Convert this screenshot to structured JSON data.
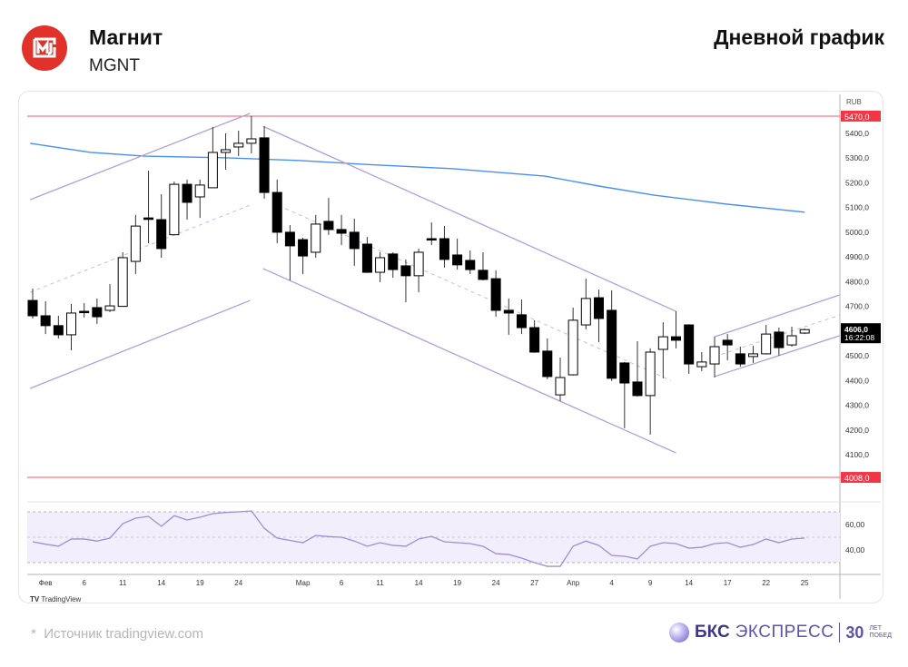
{
  "header": {
    "company": "Магнит",
    "ticker": "MGNT",
    "chart_kind": "Дневной график"
  },
  "footer": {
    "source": "Источник tradingview.com",
    "source_star": "*",
    "brand_bold": "БКС",
    "brand_light": "ЭКСПРЕСС",
    "brand_30": "30",
    "brand_small_1": "ЛЕТ",
    "brand_small_2": "ПОБЕД",
    "tv_logo": "TradingView"
  },
  "colors": {
    "up_fill": "#ffffff",
    "down_fill": "#000000",
    "channel": "#b39ddb",
    "ma": "#4a8ff0",
    "level": "#f23645",
    "rsi": "#9c8fd6",
    "rsi_band": "#f3eefb"
  },
  "chart_data": {
    "type": "candlestick",
    "currency": "RUB",
    "y_ticks": [
      "5400,0",
      "5300,0",
      "5200,0",
      "5100,0",
      "5000,0",
      "4900,0",
      "4800,0",
      "4700,0",
      "4500,0",
      "4400,0",
      "4300,0",
      "4200,0",
      "4100,0"
    ],
    "y_tick_values": [
      5400,
      5300,
      5200,
      5100,
      5000,
      4900,
      4800,
      4700,
      4500,
      4400,
      4300,
      4200,
      4100
    ],
    "levels": [
      {
        "price": 5470,
        "label": "5470,0"
      },
      {
        "price": 4008,
        "label": "4008,0"
      }
    ],
    "last": {
      "price": 4606,
      "label": "4606,0",
      "time": "16:22:08"
    },
    "x_labels": [
      {
        "i": 1,
        "t": "Фев"
      },
      {
        "i": 4,
        "t": "6"
      },
      {
        "i": 7,
        "t": "11"
      },
      {
        "i": 10,
        "t": "14"
      },
      {
        "i": 13,
        "t": "19"
      },
      {
        "i": 16,
        "t": "24"
      },
      {
        "i": 21,
        "t": "Мар"
      },
      {
        "i": 24,
        "t": "6"
      },
      {
        "i": 27,
        "t": "11"
      },
      {
        "i": 30,
        "t": "14"
      },
      {
        "i": 33,
        "t": "19"
      },
      {
        "i": 36,
        "t": "24"
      },
      {
        "i": 39,
        "t": "27"
      },
      {
        "i": 42,
        "t": "Апр"
      },
      {
        "i": 45,
        "t": "4"
      },
      {
        "i": 48,
        "t": "9"
      },
      {
        "i": 51,
        "t": "14"
      },
      {
        "i": 54,
        "t": "17"
      },
      {
        "i": 57,
        "t": "22"
      },
      {
        "i": 60,
        "t": "25"
      }
    ],
    "ohlc": [
      [
        4724,
        4772,
        4651,
        4662
      ],
      [
        4662,
        4721,
        4588,
        4622
      ],
      [
        4622,
        4662,
        4570,
        4585
      ],
      [
        4585,
        4710,
        4522,
        4673
      ],
      [
        4680,
        4713,
        4655,
        4675
      ],
      [
        4695,
        4732,
        4629,
        4658
      ],
      [
        4684,
        4790,
        4677,
        4702
      ],
      [
        4700,
        4919,
        4700,
        4897
      ],
      [
        4882,
        5070,
        4831,
        5025
      ],
      [
        5058,
        5249,
        4956,
        5052
      ],
      [
        5051,
        5154,
        4897,
        4934
      ],
      [
        4990,
        5205,
        4990,
        5194
      ],
      [
        5194,
        5213,
        5051,
        5121
      ],
      [
        5143,
        5213,
        5058,
        5191
      ],
      [
        5180,
        5426,
        5180,
        5323
      ],
      [
        5323,
        5400,
        5253,
        5334
      ],
      [
        5345,
        5411,
        5308,
        5360
      ],
      [
        5360,
        5470,
        5319,
        5378
      ],
      [
        5382,
        5429,
        5136,
        5161
      ],
      [
        5161,
        5213,
        4956,
        5000
      ],
      [
        5000,
        5029,
        4805,
        4945
      ],
      [
        4970,
        4978,
        4831,
        4904
      ],
      [
        4919,
        5070,
        4897,
        5033
      ],
      [
        5044,
        5139,
        4989,
        5011
      ],
      [
        5011,
        5070,
        4948,
        4996
      ],
      [
        5000,
        5055,
        4864,
        4934
      ],
      [
        4952,
        4981,
        4835,
        4838
      ],
      [
        4838,
        4919,
        4798,
        4897
      ],
      [
        4912,
        4919,
        4816,
        4849
      ],
      [
        4864,
        4890,
        4717,
        4824
      ],
      [
        4824,
        4934,
        4757,
        4919
      ],
      [
        4974,
        5040,
        4948,
        4970
      ],
      [
        4974,
        5025,
        4857,
        4890
      ],
      [
        4908,
        4974,
        4849,
        4868
      ],
      [
        4886,
        4926,
        4831,
        4849
      ],
      [
        4846,
        4919,
        4805,
        4809
      ],
      [
        4812,
        4846,
        4658,
        4684
      ],
      [
        4684,
        4732,
        4585,
        4673
      ],
      [
        4666,
        4728,
        4588,
        4614
      ],
      [
        4614,
        4644,
        4512,
        4515
      ],
      [
        4519,
        4570,
        4405,
        4416
      ],
      [
        4342,
        4493,
        4317,
        4412
      ],
      [
        4423,
        4695,
        4420,
        4644
      ],
      [
        4625,
        4812,
        4607,
        4732
      ],
      [
        4735,
        4768,
        4555,
        4651
      ],
      [
        4684,
        4765,
        4398,
        4409
      ],
      [
        4471,
        4475,
        4207,
        4390
      ],
      [
        4394,
        4559,
        4335,
        4339
      ],
      [
        4339,
        4530,
        4181,
        4515
      ],
      [
        4526,
        4636,
        4409,
        4577
      ],
      [
        4577,
        4680,
        4530,
        4563
      ],
      [
        4625,
        4628,
        4427,
        4467
      ],
      [
        4456,
        4515,
        4438,
        4475
      ],
      [
        4467,
        4577,
        4412,
        4537
      ],
      [
        4563,
        4588,
        4482,
        4544
      ],
      [
        4508,
        4537,
        4456,
        4467
      ],
      [
        4497,
        4541,
        4471,
        4508
      ],
      [
        4508,
        4625,
        4505,
        4588
      ],
      [
        4596,
        4614,
        4500,
        4533
      ],
      [
        4544,
        4618,
        4537,
        4581
      ],
      [
        4592,
        4610,
        4588,
        4606
      ]
    ],
    "ma": [
      [
        -0.2,
        5360
      ],
      [
        4.5,
        5323
      ],
      [
        8.75,
        5308
      ],
      [
        15.1,
        5301
      ],
      [
        20.8,
        5290
      ],
      [
        25.7,
        5275
      ],
      [
        32.7,
        5257
      ],
      [
        39.8,
        5227
      ],
      [
        44,
        5187
      ],
      [
        48.3,
        5150
      ],
      [
        53.9,
        5114
      ],
      [
        60,
        5081
      ]
    ],
    "channels": [
      {
        "upper": [
          [
            -0.2,
            5132
          ],
          [
            16.9,
            5481
          ]
        ],
        "lower": [
          [
            -0.2,
            4368
          ],
          [
            16.9,
            4724
          ]
        ],
        "mid": [
          [
            -0.2,
            4757
          ],
          [
            16.9,
            5110
          ]
        ]
      },
      {
        "upper": [
          [
            17.9,
            5429
          ],
          [
            50,
            4680
          ]
        ],
        "lower": [
          [
            17.9,
            4853
          ],
          [
            50,
            4107
          ]
        ],
        "mid": [
          [
            18.6,
            5120
          ],
          [
            49.6,
            4400
          ]
        ]
      },
      {
        "upper": [
          [
            53,
            4577
          ],
          [
            62.7,
            4746
          ]
        ],
        "lower": [
          [
            53,
            4416
          ],
          [
            62.7,
            4581
          ]
        ],
        "mid": [
          [
            53,
            4497
          ],
          [
            62.7,
            4664
          ]
        ]
      }
    ],
    "rsi": {
      "ticks": [
        "60,00",
        "40,00"
      ],
      "tick_values": [
        60,
        40
      ],
      "bands": [
        70,
        50,
        30
      ],
      "values": [
        46.4,
        44.5,
        42.9,
        48.6,
        48.6,
        47,
        49.3,
        60.7,
        65,
        66.4,
        58.6,
        67,
        63.6,
        65.7,
        68.6,
        69.5,
        70,
        70.7,
        57,
        49.3,
        47.5,
        45.7,
        51.4,
        50.5,
        50,
        47,
        42.9,
        45.7,
        43.6,
        42.9,
        48.6,
        50.7,
        46.4,
        45.7,
        45,
        42.9,
        37.1,
        36.4,
        33.6,
        30,
        27.1,
        27.1,
        42.9,
        47,
        43.6,
        35.7,
        35,
        32.9,
        42.9,
        45.7,
        45,
        41.4,
        42.1,
        45,
        45.7,
        42.1,
        44.3,
        48.6,
        45.7,
        48.6,
        49.3
      ]
    }
  }
}
